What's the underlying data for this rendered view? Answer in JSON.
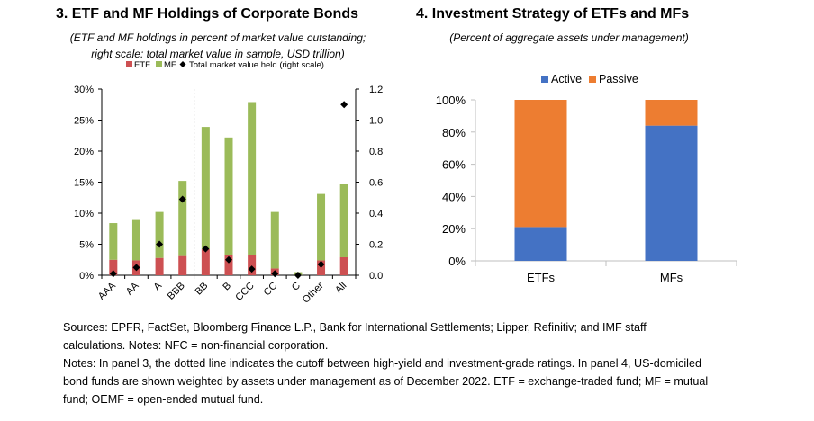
{
  "panel3": {
    "title": "3. ETF and MF Holdings of Corporate Bonds",
    "subtitle_line1": "(ETF and MF holdings in percent of market value outstanding;",
    "subtitle_line2": "right scale: total market value in sample, USD trillion)"
  },
  "panel4": {
    "title": "4. Investment Strategy of ETFs and MFs",
    "subtitle": "(Percent of aggregate assets under management)"
  },
  "notes": {
    "line1": "Sources: EPFR, FactSet, Bloomberg Finance L.P., Bank for International Settlements; Lipper, Refinitiv; and IMF staff",
    "line2": "calculations. Notes: NFC = non-financial corporation.",
    "line3": "Notes: In panel 3, the dotted line indicates the cutoff between high-yield and investment-grade ratings. In panel 4, US-domiciled",
    "line4": "bond funds are shown weighted by assets under management as of December 2022. ETF = exchange-traded fund; MF = mutual",
    "line5": "fund; OEMF = open-ended mutual fund."
  },
  "colors": {
    "etf": "#cd5052",
    "mf": "#9bbb59",
    "active": "#4472c4",
    "passive": "#ed7d31",
    "marker": "#000000"
  },
  "chart_data": [
    {
      "type": "bar",
      "stacked": true,
      "title": "3. ETF and MF Holdings of Corporate Bonds",
      "categories": [
        "AAA",
        "AA",
        "A",
        "BBB",
        "BB",
        "B",
        "CCC",
        "CC",
        "C",
        "Other",
        "All"
      ],
      "series": [
        {
          "name": "ETF",
          "values": [
            2.5,
            2.4,
            2.8,
            3.1,
            4.2,
            3.3,
            3.3,
            1.1,
            0.0,
            2.4,
            2.9
          ]
        },
        {
          "name": "MF",
          "values": [
            5.9,
            6.5,
            7.4,
            12.1,
            19.7,
            18.9,
            24.6,
            9.1,
            0.5,
            10.7,
            11.8
          ]
        },
        {
          "name": "Total market value held (right scale)",
          "axis": "right",
          "marker": "diamond",
          "values": [
            0.01,
            0.05,
            0.2,
            0.49,
            0.17,
            0.1,
            0.04,
            0.01,
            0.0,
            0.07,
            1.1
          ]
        }
      ],
      "legend": [
        "ETF",
        "MF",
        "Total market value held (right scale)"
      ],
      "ylim": [
        0,
        30
      ],
      "yticks": [
        "0%",
        "5%",
        "10%",
        "15%",
        "20%",
        "25%",
        "30%"
      ],
      "y2lim": [
        0,
        1.2
      ],
      "y2ticks": [
        "0.0",
        "0.2",
        "0.4",
        "0.6",
        "0.8",
        "1.0",
        "1.2"
      ],
      "cutoff_after": "BBB"
    },
    {
      "type": "bar",
      "stacked": true,
      "title": "4. Investment Strategy of ETFs and MFs",
      "categories": [
        "ETFs",
        "MFs"
      ],
      "series": [
        {
          "name": "Active",
          "values": [
            21,
            84
          ]
        },
        {
          "name": "Passive",
          "values": [
            79,
            16
          ]
        }
      ],
      "legend": [
        "Active",
        "Passive"
      ],
      "ylim": [
        0,
        100
      ],
      "yticks": [
        "0%",
        "20%",
        "40%",
        "60%",
        "80%",
        "100%"
      ]
    }
  ]
}
